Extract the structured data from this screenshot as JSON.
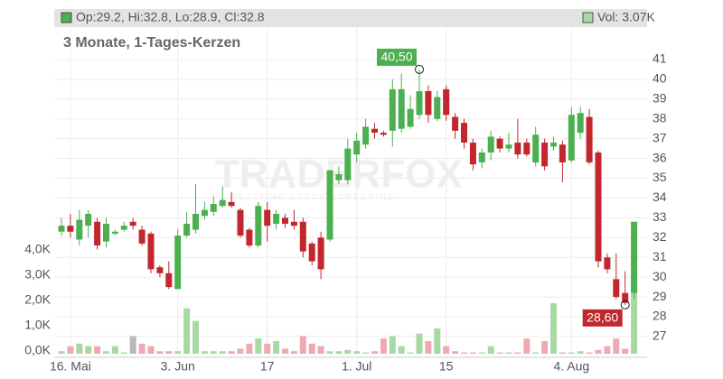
{
  "chart_data": {
    "type": "candlestick",
    "subtitle": "3 Monate, 1-Tages-Kerzen",
    "legend_ohlc": "Op:29.2, Hi:32.8, Lo:28.9, Cl:32.8",
    "legend_volume": "Vol: 3.07K",
    "watermark": "TRADERFOX",
    "watermark_sub": "REALTIME STOCK SCREENING",
    "categories": [
      null,
      "16. Mai",
      null,
      null,
      null,
      null,
      null,
      null,
      null,
      null,
      null,
      null,
      null,
      "3. Jun",
      null,
      null,
      null,
      null,
      null,
      null,
      null,
      null,
      null,
      "17",
      null,
      null,
      null,
      null,
      null,
      null,
      null,
      null,
      null,
      "1. Jul",
      null,
      null,
      null,
      null,
      null,
      null,
      null,
      null,
      null,
      "15",
      null,
      null,
      null,
      null,
      null,
      null,
      null,
      null,
      null,
      null,
      null,
      null,
      null,
      "4. Aug",
      null,
      null,
      null,
      null,
      null,
      null,
      null
    ],
    "open": [
      32.3,
      32.6,
      31.9,
      32.6,
      32.8,
      31.8,
      32.2,
      32.4,
      32.8,
      32.4,
      32.2,
      30.5,
      30.2,
      29.4,
      32.1,
      32.4,
      33.1,
      33.3,
      33.6,
      33.8,
      33.4,
      32.4,
      31.6,
      33.4,
      32.7,
      33.0,
      32.8,
      32.8,
      31.7,
      32.0,
      31.9,
      34.9,
      34.9,
      36.2,
      36.7,
      37.5,
      37.3,
      37.4,
      37.5,
      37.6,
      38.2,
      39.4,
      38.0,
      39.5,
      38.1,
      37.8,
      36.8,
      35.8,
      36.3,
      37.0,
      36.5,
      36.8,
      36.8,
      35.8,
      36.8,
      36.6,
      36.7,
      35.9,
      37.3,
      38.1,
      36.3,
      31.0,
      29.9,
      29.2,
      29.2
    ],
    "high": [
      33.0,
      33.2,
      33.4,
      33.4,
      33.0,
      33.0,
      32.4,
      32.8,
      33.0,
      32.6,
      32.3,
      30.6,
      30.8,
      32.4,
      33.3,
      34.7,
      33.8,
      34.1,
      34.6,
      34.3,
      33.5,
      32.5,
      33.8,
      33.8,
      33.4,
      33.2,
      33.4,
      33.0,
      31.8,
      32.3,
      35.4,
      35.6,
      37.0,
      37.3,
      38.0,
      37.8,
      37.4,
      40.0,
      40.3,
      39.2,
      40.5,
      39.7,
      39.4,
      39.7,
      38.3,
      38.0,
      37.0,
      36.5,
      37.4,
      37.1,
      37.3,
      38.0,
      37.0,
      37.6,
      37.0,
      37.1,
      36.9,
      38.6,
      38.6,
      38.5,
      36.4,
      31.2,
      31.2,
      30.3,
      32.8
    ],
    "low": [
      32.1,
      32.0,
      31.6,
      32.0,
      31.4,
      31.5,
      32.1,
      32.3,
      32.4,
      31.6,
      30.2,
      30.0,
      29.4,
      29.4,
      32.0,
      32.2,
      32.9,
      33.1,
      33.5,
      33.5,
      32.0,
      31.5,
      31.5,
      31.8,
      32.4,
      32.5,
      32.4,
      31.0,
      30.6,
      29.9,
      31.8,
      34.7,
      34.7,
      35.8,
      36.5,
      37.0,
      37.1,
      36.6,
      37.3,
      37.5,
      38.0,
      37.8,
      37.9,
      37.9,
      37.0,
      36.5,
      35.4,
      35.5,
      35.9,
      36.3,
      36.3,
      36.0,
      36.1,
      35.6,
      35.4,
      36.4,
      34.8,
      35.8,
      37.0,
      35.7,
      30.5,
      30.2,
      28.9,
      28.6,
      28.9
    ],
    "close": [
      32.6,
      32.3,
      32.9,
      33.2,
      31.6,
      32.7,
      32.3,
      32.6,
      32.6,
      31.7,
      30.4,
      30.2,
      29.5,
      32.1,
      32.7,
      33.2,
      33.4,
      33.7,
      33.9,
      33.6,
      32.1,
      31.6,
      33.6,
      32.6,
      33.2,
      32.7,
      32.6,
      31.3,
      30.8,
      30.4,
      35.4,
      35.2,
      36.5,
      36.9,
      37.6,
      37.3,
      37.2,
      39.5,
      39.5,
      38.5,
      39.4,
      38.2,
      39.1,
      38.2,
      37.4,
      36.8,
      35.7,
      36.3,
      37.1,
      36.5,
      36.7,
      36.2,
      36.2,
      37.2,
      35.6,
      36.8,
      35.8,
      38.2,
      38.3,
      35.8,
      30.8,
      30.4,
      29.0,
      28.7,
      32.8
    ],
    "volume": [
      0.1,
      0.3,
      0.4,
      0.3,
      0.3,
      0.1,
      0.3,
      0.05,
      0.7,
      0.4,
      0.3,
      0.1,
      0.1,
      0.1,
      1.8,
      1.3,
      0.1,
      0.1,
      0.1,
      0.1,
      0.2,
      0.4,
      0.6,
      0.4,
      0.5,
      0.2,
      0.1,
      0.7,
      0.4,
      0.3,
      0.1,
      0.1,
      0.15,
      0.1,
      0.05,
      0.1,
      0.6,
      0.7,
      0.3,
      0.05,
      0.8,
      0.5,
      1.0,
      0.3,
      0.1,
      0.05,
      0.05,
      0.05,
      0.3,
      0.05,
      0.05,
      0.05,
      0.6,
      0.05,
      0.5,
      2.0,
      0.05,
      0.05,
      0.1,
      0.05,
      0.15,
      0.3,
      0.6,
      0.2,
      3.07
    ],
    "up_color": "#4caf50",
    "down_color": "#c1272d",
    "volume_up_color": "#a9d9a3",
    "volume_down_color": "#f0a9b2",
    "volume_flat_color": "#b9b9b9",
    "volume_flat": [
      8
    ],
    "ylim": [
      26.13,
      42.64
    ],
    "yticks": [
      27,
      28,
      29,
      30,
      31,
      32,
      33,
      34,
      35,
      36,
      37,
      38,
      39,
      40,
      41
    ],
    "y2lim": [
      0,
      12.93
    ],
    "y2ticks": [
      {
        "value": 0,
        "label": "0,0K"
      },
      {
        "value": 1,
        "label": "1,0K"
      },
      {
        "value": 2,
        "label": "2,0K"
      },
      {
        "value": 3,
        "label": "3,0K"
      },
      {
        "value": 4,
        "label": "4,0K"
      }
    ],
    "annotations": [
      {
        "index": 40,
        "value": 40.5,
        "label": "40,50",
        "color": "#4caf50"
      },
      {
        "index": 63,
        "value": 28.6,
        "label": "28,60",
        "color": "#c1272d"
      }
    ],
    "grid": true
  }
}
